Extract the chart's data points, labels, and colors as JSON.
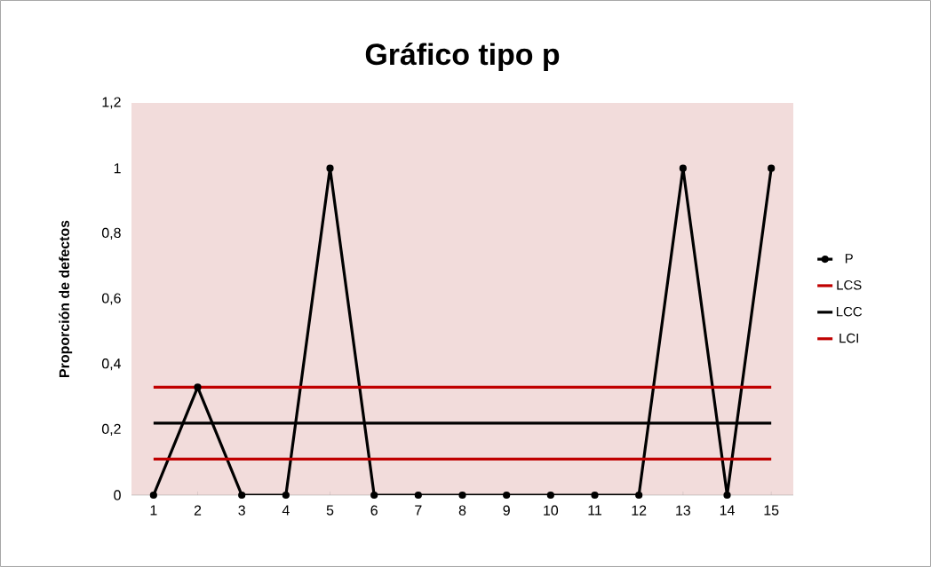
{
  "chart_data": {
    "type": "line",
    "title": "Gráfico tipo p",
    "ylabel": "Proporción de defectos",
    "categories": [
      "1",
      "2",
      "3",
      "4",
      "5",
      "6",
      "7",
      "8",
      "9",
      "10",
      "11",
      "12",
      "13",
      "14",
      "15"
    ],
    "ylim": [
      0,
      1.2
    ],
    "yticks": [
      0,
      {
        "value": 0.2,
        "label": "0,2"
      },
      {
        "value": 0.4,
        "label": "0,4"
      },
      {
        "value": 0.6,
        "label": "0,6"
      },
      {
        "value": 0.8,
        "label": "0,8"
      },
      1,
      {
        "value": 1.2,
        "label": "1,2"
      }
    ],
    "legend": "right",
    "series": [
      {
        "name": "P",
        "color": "#000000",
        "marker": "circle",
        "values": [
          0,
          0.33,
          0,
          0,
          1,
          0,
          0,
          0,
          0,
          0,
          0,
          0,
          1,
          0,
          1
        ]
      },
      {
        "name": "LCS",
        "color": "#c00000",
        "marker": "none",
        "values": [
          0.33,
          0.33,
          0.33,
          0.33,
          0.33,
          0.33,
          0.33,
          0.33,
          0.33,
          0.33,
          0.33,
          0.33,
          0.33,
          0.33,
          0.33
        ]
      },
      {
        "name": "LCC",
        "color": "#000000",
        "marker": "none",
        "values": [
          0.22,
          0.22,
          0.22,
          0.22,
          0.22,
          0.22,
          0.22,
          0.22,
          0.22,
          0.22,
          0.22,
          0.22,
          0.22,
          0.22,
          0.22
        ]
      },
      {
        "name": "LCI",
        "color": "#c00000",
        "marker": "none",
        "values": [
          0.11,
          0.11,
          0.11,
          0.11,
          0.11,
          0.11,
          0.11,
          0.11,
          0.11,
          0.11,
          0.11,
          0.11,
          0.11,
          0.11,
          0.11
        ]
      }
    ]
  }
}
